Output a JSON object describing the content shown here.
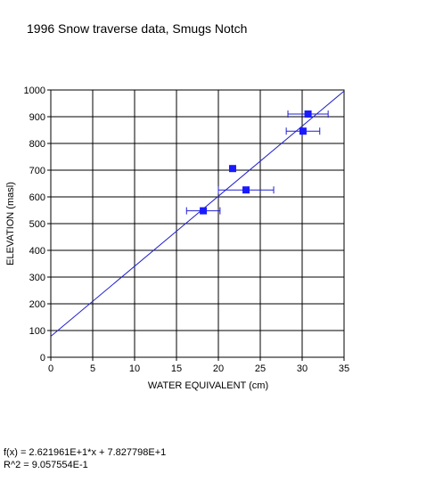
{
  "chart_data": {
    "type": "scatter",
    "title": "1996 Snow traverse data, Smugs Notch",
    "xlabel": "WATER EQUIVALENT (cm)",
    "ylabel": "ELEVATION (masl)",
    "xlim": [
      0,
      35
    ],
    "ylim": [
      0,
      1000
    ],
    "xticks": [
      0,
      5,
      10,
      15,
      20,
      25,
      30,
      35
    ],
    "yticks": [
      0,
      100,
      200,
      300,
      400,
      500,
      600,
      700,
      800,
      900,
      1000
    ],
    "grid": true,
    "points": [
      {
        "x": 18.2,
        "y": 548,
        "xerr": 2.0
      },
      {
        "x": 21.7,
        "y": 706,
        "xerr": null
      },
      {
        "x": 23.3,
        "y": 626,
        "xerr": 3.3
      },
      {
        "x": 30.1,
        "y": 846,
        "xerr": 2.0
      },
      {
        "x": 30.7,
        "y": 910,
        "xerr": 2.4
      }
    ],
    "fit": {
      "slope": 26.21961,
      "intercept": 78.27798
    },
    "marker_color": "#1a1aff",
    "line_color": "#2020d0"
  },
  "fit_text": {
    "equation": "f(x) = 2.621961E+1*x + 7.827798E+1",
    "r2": "R^2 = 9.057554E-1"
  }
}
